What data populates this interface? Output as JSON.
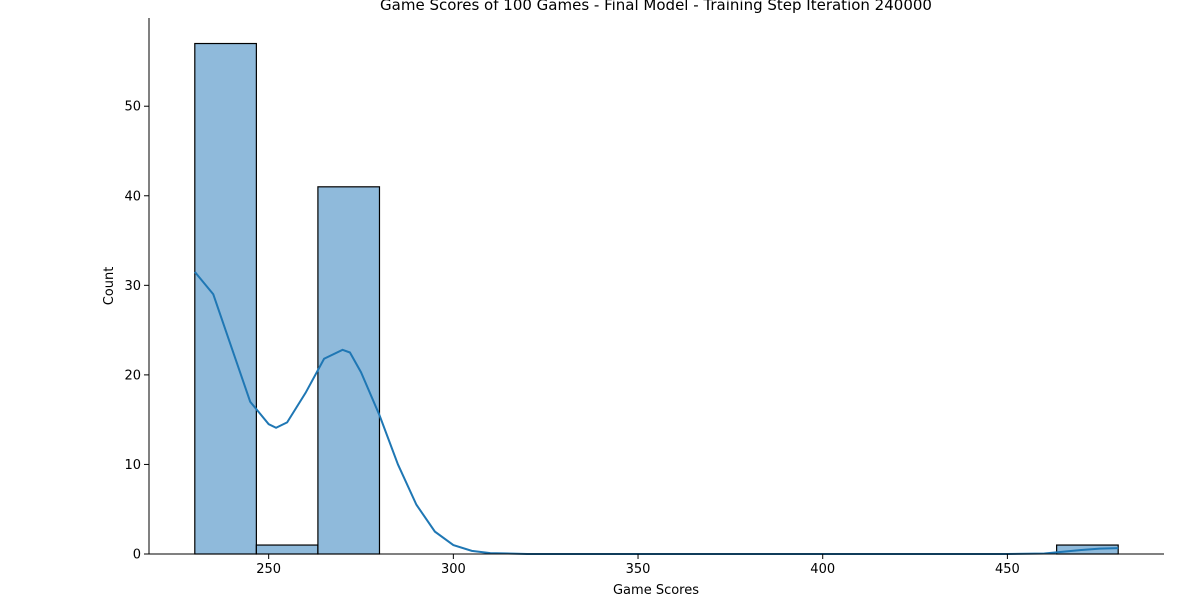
{
  "chart_data": {
    "type": "bar",
    "title": "Game Scores of 100 Games - Final Model - Training Step Iteration 240000",
    "xlabel": "Game Scores",
    "ylabel": "Count",
    "xlim": [
      217.6,
      492.4
    ],
    "ylim": [
      0,
      59.85
    ],
    "xticks": [
      250,
      300,
      350,
      400,
      450
    ],
    "yticks": [
      0,
      10,
      20,
      30,
      40,
      50
    ],
    "grid": false,
    "bar_color": "#8fbadb",
    "bar_edge_color": "#000000",
    "kde_color": "#1f77b4",
    "bins": [
      {
        "start": 230.0,
        "end": 246.67,
        "count": 57
      },
      {
        "start": 246.67,
        "end": 263.33,
        "count": 1
      },
      {
        "start": 263.33,
        "end": 280.0,
        "count": 41
      },
      {
        "start": 463.33,
        "end": 480.0,
        "count": 1
      }
    ],
    "kde": {
      "x": [
        230,
        235,
        240,
        245,
        250,
        252,
        255,
        260,
        265,
        270,
        272,
        275,
        280,
        285,
        290,
        295,
        300,
        305,
        310,
        320,
        340,
        400,
        450,
        460,
        465,
        470,
        475,
        480
      ],
      "y": [
        31.5,
        29.0,
        23.0,
        17.0,
        14.5,
        14.1,
        14.7,
        18.0,
        21.8,
        22.8,
        22.5,
        20.3,
        15.5,
        10.0,
        5.5,
        2.5,
        1.0,
        0.35,
        0.1,
        0.0,
        0.0,
        0.0,
        0.0,
        0.05,
        0.25,
        0.45,
        0.6,
        0.65
      ]
    }
  }
}
